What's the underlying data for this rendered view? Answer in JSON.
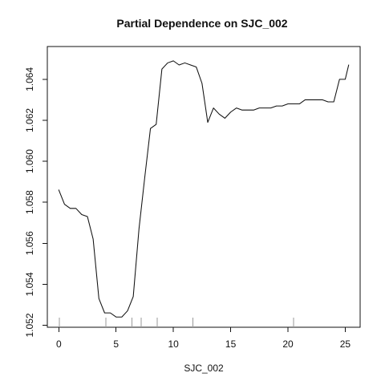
{
  "chart_data": {
    "type": "line",
    "title": "Partial Dependence on SJC_002",
    "xlabel": "SJC_002",
    "ylabel": "",
    "xlim": [
      -1,
      26.3
    ],
    "ylim": [
      1.0519,
      1.0656
    ],
    "x_ticks": [
      0,
      5,
      10,
      15,
      20,
      25
    ],
    "y_ticks": [
      1.052,
      1.054,
      1.056,
      1.058,
      1.06,
      1.062,
      1.064
    ],
    "y_tick_labels": [
      "1.052",
      "1.054",
      "1.056",
      "1.058",
      "1.060",
      "1.062",
      "1.064"
    ],
    "grid": false,
    "series": [
      {
        "x": [
          0,
          0.5,
          1,
          1.5,
          2,
          2.5,
          3,
          3.5,
          4,
          4.5,
          5,
          5.5,
          6,
          6.5,
          7,
          7.5,
          8,
          8.5,
          9,
          9.5,
          10,
          10.5,
          11,
          11.5,
          12,
          12.5,
          13,
          13.5,
          14,
          14.5,
          15,
          15.5,
          16,
          16.5,
          17,
          17.5,
          18,
          18.5,
          19,
          19.5,
          20,
          20.5,
          21,
          21.5,
          22,
          22.5,
          23,
          23.5,
          24,
          24.5,
          25,
          25.3
        ],
        "values": [
          1.0586,
          1.0579,
          1.0577,
          1.0577,
          1.0574,
          1.0573,
          1.0562,
          1.0533,
          1.0526,
          1.0526,
          1.0524,
          1.0524,
          1.0527,
          1.0534,
          1.0567,
          1.0592,
          1.0616,
          1.0618,
          1.0645,
          1.0648,
          1.0649,
          1.0647,
          1.0648,
          1.0647,
          1.0646,
          1.0638,
          1.0619,
          1.0626,
          1.0623,
          1.0621,
          1.0624,
          1.0626,
          1.0625,
          1.0625,
          1.0625,
          1.0626,
          1.0626,
          1.0626,
          1.0627,
          1.0627,
          1.0628,
          1.0628,
          1.0628,
          1.063,
          1.063,
          1.063,
          1.063,
          1.0629,
          1.0629,
          1.064,
          1.064,
          1.0647
        ]
      }
    ],
    "rug_x": [
      0.05,
      4.1,
      6.4,
      7.2,
      8.6,
      11.7,
      20.5
    ]
  }
}
